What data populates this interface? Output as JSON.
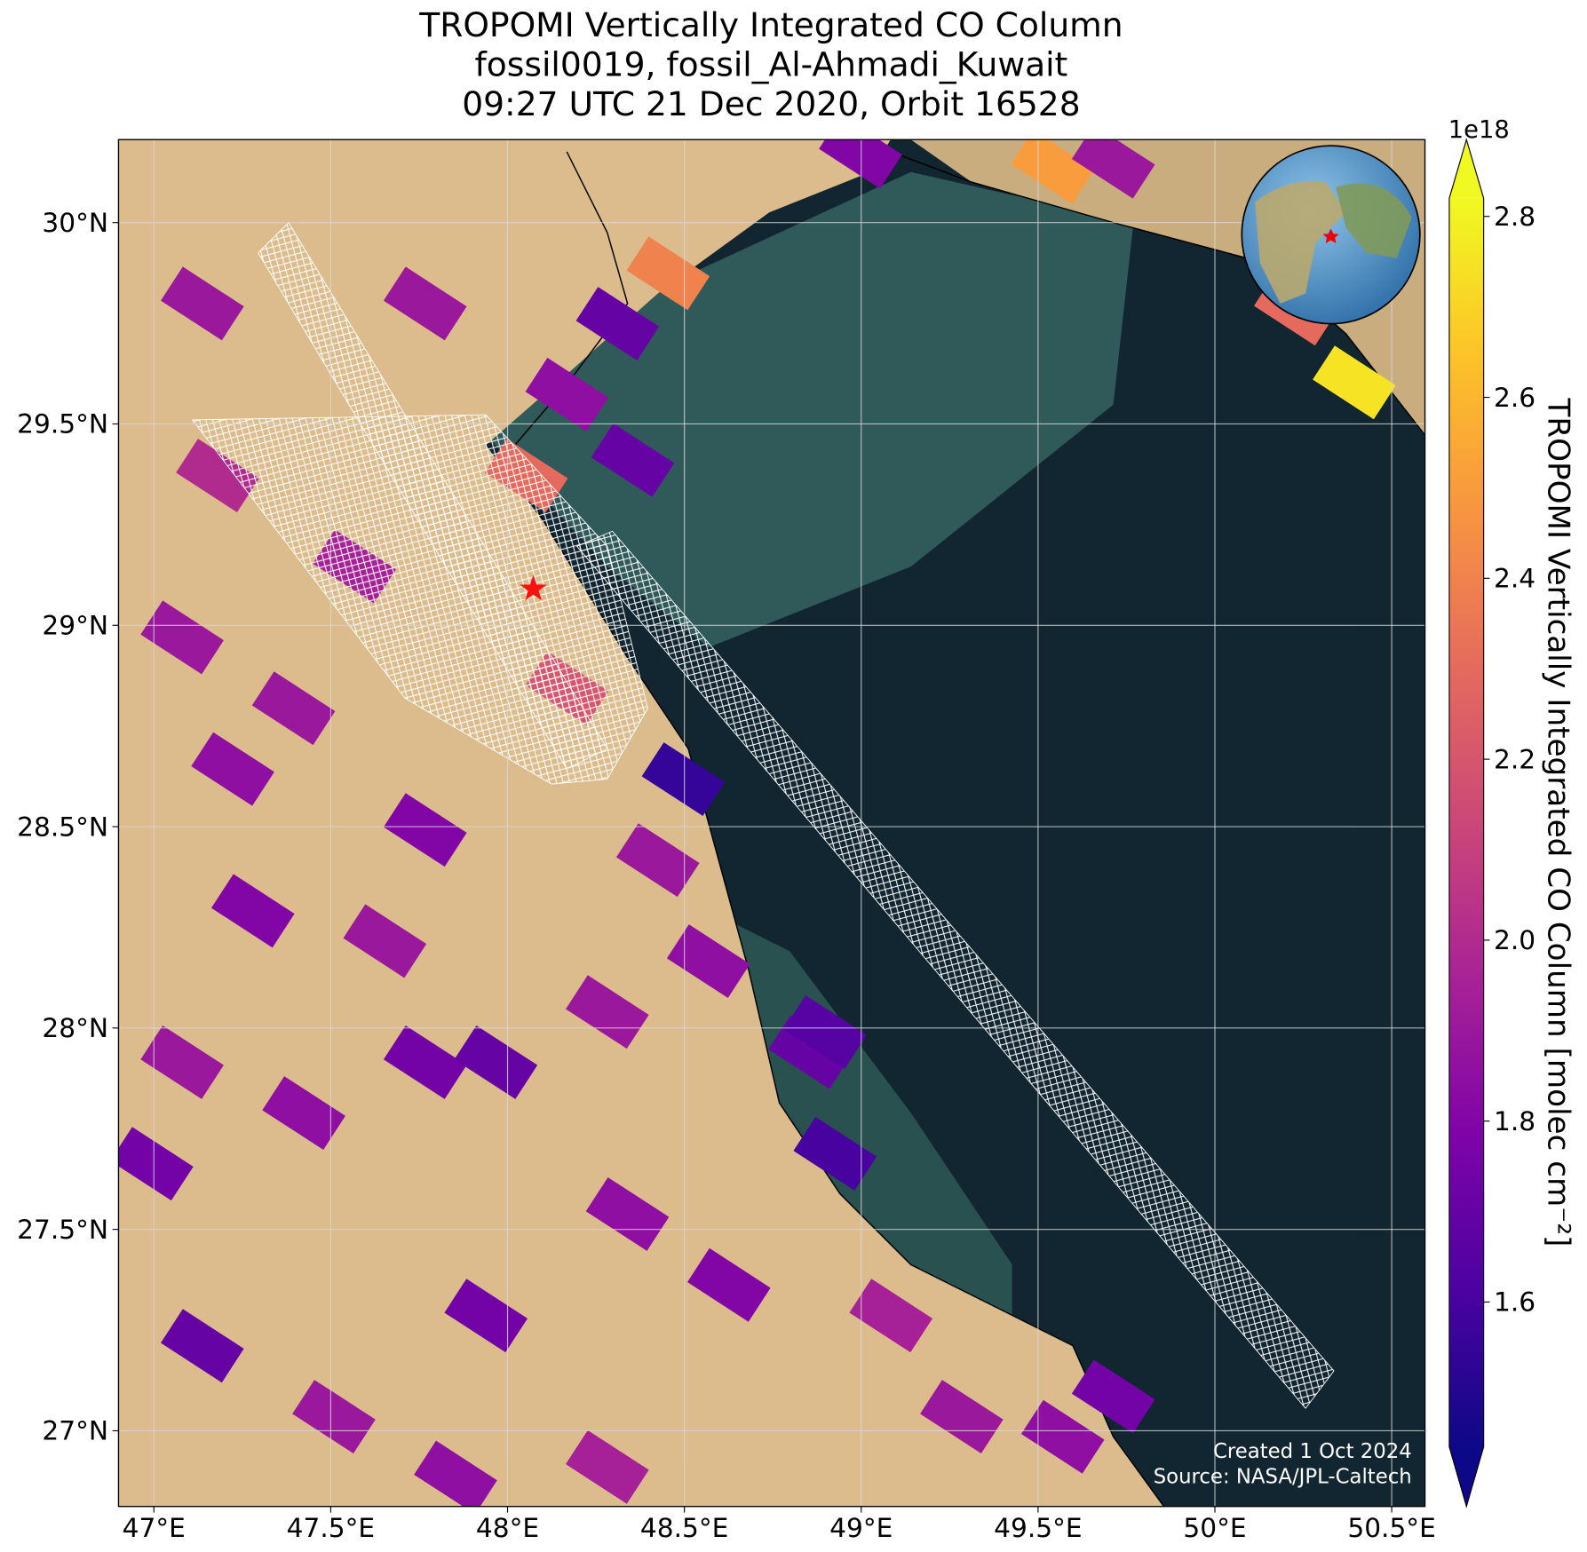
{
  "chart_data": {
    "type": "map",
    "title": "TROPOMI Vertically Integrated CO Column",
    "subtitle": [
      "fossil0019, fossil_Al-Ahmadi_Kuwait",
      "09:27 UTC 21 Dec 2020, Orbit 16528"
    ],
    "xlim": [
      46.9,
      50.594
    ],
    "ylim": [
      26.812,
      30.206
    ],
    "xticks": [
      {
        "value": 47,
        "label": "47°E"
      },
      {
        "value": 47.5,
        "label": "47.5°E"
      },
      {
        "value": 48,
        "label": "48°E"
      },
      {
        "value": 48.5,
        "label": "48.5°E"
      },
      {
        "value": 49,
        "label": "49°E"
      },
      {
        "value": 49.5,
        "label": "49.5°E"
      },
      {
        "value": 50,
        "label": "50°E"
      },
      {
        "value": 50.5,
        "label": "50.5°E"
      }
    ],
    "yticks": [
      {
        "value": 27,
        "label": "27°N"
      },
      {
        "value": 27.5,
        "label": "27.5°N"
      },
      {
        "value": 28,
        "label": "28°N"
      },
      {
        "value": 28.5,
        "label": "28.5°N"
      },
      {
        "value": 29,
        "label": "29°N"
      },
      {
        "value": 29.5,
        "label": "29.5°N"
      },
      {
        "value": 30,
        "label": "30°N"
      }
    ],
    "grid": true,
    "colorbar": {
      "label": "TROPOMI Vertically Integrated CO Column [molec cm⁻²]",
      "offset_label": "1e18",
      "colormap": "plasma",
      "clim": [
        1.44,
        2.82
      ],
      "ticks": [
        1.6,
        1.8,
        {
          "value": 2,
          "label": "2.0"
        },
        2.2,
        2.4,
        2.6,
        2.8
      ],
      "extend": "both"
    },
    "target": {
      "lon": 48.073,
      "lat": 29.09
    },
    "pixels": {
      "lon": [
        47.137,
        47.18,
        47.08,
        47.223,
        47.395,
        47.567,
        47.767,
        47.653,
        47.28,
        47.08,
        47.424,
        47.767,
        47.967,
        47.939,
        48.282,
        48.425,
        48.568,
        48.339,
        48.626,
        48.855,
        48.926,
        49.084,
        49.284,
        49.57,
        49.713,
        47.137,
        47.509,
        47.853,
        48.282,
        48.168,
        48.311,
        47.767,
        48.168,
        48.053,
        48.454,
        49.541,
        50.394,
        50.228,
        48.497,
        48.998,
        48.354,
        46.994,
        49.713,
        48.898
      ],
      "lat": [
        29.799,
        29.372,
        28.97,
        28.643,
        28.794,
        29.146,
        28.492,
        28.216,
        28.291,
        27.915,
        27.789,
        27.915,
        27.915,
        27.286,
        28.04,
        28.417,
        28.166,
        27.538,
        27.362,
        27.94,
        27.688,
        27.286,
        27.035,
        26.985,
        27.085,
        27.211,
        27.035,
        26.884,
        26.91,
        29.573,
        29.749,
        29.799,
        28.844,
        29.372,
        29.874,
        30.138,
        29.603,
        29.786,
        28.618,
        30.176,
        29.41,
        27.663,
        30.151,
        27.99
      ],
      "values": [
        1.9,
        2.0,
        1.9,
        1.85,
        1.9,
        1.95,
        1.8,
        1.9,
        1.8,
        1.9,
        1.85,
        1.75,
        1.7,
        1.75,
        1.9,
        1.9,
        1.85,
        1.85,
        1.8,
        1.7,
        1.6,
        1.95,
        1.9,
        1.85,
        1.75,
        1.7,
        1.9,
        1.85,
        1.95,
        1.85,
        1.7,
        1.9,
        2.2,
        2.3,
        2.4,
        2.5,
        2.75,
        2.3,
        1.55,
        1.8,
        1.7,
        1.75,
        1.9,
        1.65
      ]
    },
    "annotations": [
      "Created 1 Oct 2024",
      "Source: NASA/JPL-Caltech"
    ]
  }
}
